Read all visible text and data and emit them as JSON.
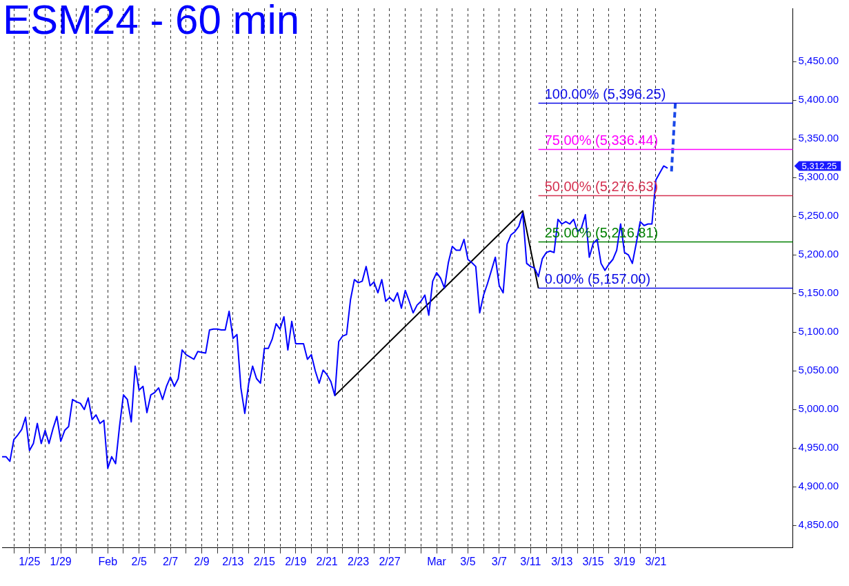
{
  "chart_data": {
    "type": "line",
    "title": "ESM24 - 60 min",
    "legend": false,
    "grid": "x",
    "categories": [
      null,
      null,
      null,
      null,
      null,
      null,
      null,
      "1/25",
      null,
      null,
      null,
      null,
      null,
      null,
      null,
      "1/29",
      null,
      null,
      null,
      null,
      null,
      null,
      null,
      null,
      null,
      null,
      null,
      "Feb",
      null,
      null,
      null,
      null,
      null,
      null,
      null,
      "2/5",
      null,
      null,
      null,
      null,
      null,
      null,
      null,
      "2/7",
      null,
      null,
      null,
      null,
      null,
      null,
      null,
      "2/9",
      null,
      null,
      null,
      null,
      null,
      null,
      null,
      "2/13",
      null,
      null,
      null,
      null,
      null,
      null,
      null,
      "2/15",
      null,
      null,
      null,
      null,
      null,
      null,
      null,
      "2/19",
      null,
      null,
      null,
      null,
      null,
      null,
      null,
      "2/21",
      null,
      null,
      null,
      null,
      null,
      null,
      null,
      "2/23",
      null,
      null,
      null,
      null,
      null,
      null,
      null,
      "2/27",
      null,
      null,
      null,
      null,
      null,
      null,
      null,
      null,
      null,
      null,
      null,
      "Mar",
      null,
      null,
      null,
      null,
      null,
      null,
      null,
      "3/5",
      null,
      null,
      null,
      null,
      null,
      null,
      null,
      "3/7",
      null,
      null,
      null,
      null,
      null,
      null,
      null,
      "3/11",
      null,
      null,
      null,
      null,
      null,
      null,
      null,
      "3/13",
      null,
      null,
      null,
      null,
      null,
      null,
      null,
      "3/15",
      null,
      null,
      null,
      null,
      null,
      null,
      null,
      "3/19",
      null,
      null,
      null,
      null,
      null,
      null,
      null,
      "3/21",
      null,
      null,
      null,
      null,
      null,
      null,
      null,
      null,
      null,
      null,
      null,
      null,
      null,
      null,
      null,
      null,
      null,
      null,
      null,
      null,
      null,
      null,
      null,
      null,
      null,
      null,
      null,
      null,
      null,
      null,
      null,
      null,
      null,
      null,
      null
    ],
    "ylim": [
      4821,
      5519
    ],
    "yticks": [
      {
        "value": 4850,
        "label": "4,850.00"
      },
      {
        "value": 4900,
        "label": "4,900.00"
      },
      {
        "value": 4950,
        "label": "4,950.00"
      },
      {
        "value": 5000,
        "label": "5,000.00"
      },
      {
        "value": 5050,
        "label": "5,050.00"
      },
      {
        "value": 5100,
        "label": "5,100.00"
      },
      {
        "value": 5150,
        "label": "5,150.00"
      },
      {
        "value": 5200,
        "label": "5,200.00"
      },
      {
        "value": 5250,
        "label": "5,250.00"
      },
      {
        "value": 5300,
        "label": "5,300.00"
      },
      {
        "value": 5350,
        "label": "5,350.00"
      },
      {
        "value": 5400,
        "label": "5,400.00"
      },
      {
        "value": 5450,
        "label": "5,450.00"
      }
    ],
    "series": [
      {
        "color": "#0000ff",
        "values": [
          4939,
          4939,
          4933,
          4961,
          4967,
          4974,
          4990,
          4947,
          4956,
          4982,
          4956,
          4973,
          4956,
          4975,
          4991,
          4959,
          4973,
          4978,
          5013,
          5010,
          5008,
          5000,
          5015,
          4987,
          4993,
          4982,
          4986,
          4924,
          4939,
          4930,
          4978,
          5019,
          5013,
          4984,
          5056,
          5025,
          5030,
          4996,
          5019,
          5022,
          5028,
          5013,
          5030,
          5042,
          5030,
          5040,
          5077,
          5071,
          5068,
          5065,
          5075,
          5074,
          5073,
          5103,
          5104,
          5104,
          5103,
          5103,
          5127,
          5092,
          5097,
          5028,
          4995,
          5034,
          5056,
          5040,
          5034,
          5079,
          5079,
          5091,
          5111,
          5104,
          5120,
          5077,
          5114,
          5085,
          5085,
          5085,
          5065,
          5071,
          5050,
          5034,
          5051,
          5045,
          5036,
          5018,
          5088,
          5095,
          5097,
          5142,
          5168,
          5164,
          5166,
          5185,
          5160,
          5165,
          5151,
          5168,
          5140,
          5145,
          5140,
          5151,
          5131,
          5154,
          5140,
          5125,
          5135,
          5140,
          5148,
          5122,
          5166,
          5177,
          5170,
          5157,
          5190,
          5211,
          5206,
          5206,
          5220,
          5194,
          5190,
          5185,
          5125,
          5148,
          5163,
          5180,
          5197,
          5160,
          5151,
          5214,
          5226,
          5230,
          5237,
          5254,
          5189,
          5185,
          5183,
          5172,
          5195,
          5203,
          5205,
          5203,
          5246,
          5240,
          5243,
          5240,
          5246,
          5230,
          5235,
          5252,
          5197,
          5215,
          5220,
          5189,
          5180,
          5188,
          5194,
          5206,
          5240,
          5203,
          5200,
          5189,
          5215,
          5243,
          5238,
          5240,
          5240,
          5297,
          5306,
          5315,
          5312.25,
          null,
          null,
          null,
          null,
          null,
          null,
          null,
          null,
          null,
          null,
          null,
          null,
          null,
          null,
          null,
          null,
          null,
          null,
          null,
          null,
          null,
          null,
          null,
          null,
          null,
          null,
          null,
          null,
          null,
          null,
          null,
          null
        ]
      },
      {
        "color": "#000000",
        "values": [
          null,
          null,
          null,
          null,
          null,
          null,
          null,
          null,
          null,
          null,
          null,
          null,
          null,
          null,
          null,
          null,
          null,
          null,
          null,
          null,
          null,
          null,
          null,
          null,
          null,
          null,
          null,
          null,
          null,
          null,
          null,
          null,
          null,
          null,
          null,
          null,
          null,
          null,
          null,
          null,
          null,
          null,
          null,
          null,
          null,
          null,
          null,
          null,
          null,
          null,
          null,
          null,
          null,
          null,
          null,
          null,
          null,
          null,
          null,
          null,
          null,
          null,
          null,
          null,
          null,
          null,
          null,
          null,
          null,
          null,
          null,
          null,
          null,
          null,
          null,
          null,
          null,
          null,
          null,
          null,
          null,
          null,
          null,
          null,
          null,
          5018,
          null,
          null,
          null,
          null,
          null,
          null,
          null,
          null,
          null,
          null,
          null,
          null,
          null,
          null,
          null,
          null,
          null,
          null,
          null,
          null,
          null,
          null,
          null,
          null,
          null,
          null,
          null,
          null,
          null,
          null,
          null,
          null,
          null,
          null,
          null,
          null,
          null,
          null,
          null,
          null,
          null,
          null,
          null,
          null,
          null,
          null,
          null,
          5257,
          null,
          null,
          null,
          5157,
          null,
          null,
          null,
          null,
          null,
          null,
          null,
          null,
          null,
          null,
          null,
          null,
          null,
          null,
          null,
          null,
          null,
          null,
          null,
          null,
          null,
          null,
          null,
          null,
          null,
          null,
          null,
          null,
          null,
          null,
          null,
          null,
          null,
          null,
          null,
          null,
          null,
          null,
          null,
          null,
          null,
          null,
          null,
          null,
          null,
          null,
          null,
          null,
          null,
          null,
          null,
          null,
          null,
          null,
          null,
          null,
          null,
          null,
          null,
          null,
          null,
          null,
          null,
          null,
          null
        ]
      },
      {
        "name": "100.00% (5,396.25)",
        "color": "#0a0ae6",
        "values": [
          null,
          null,
          null,
          null,
          null,
          null,
          null,
          null,
          null,
          null,
          null,
          null,
          null,
          null,
          null,
          null,
          null,
          null,
          null,
          null,
          null,
          null,
          null,
          null,
          null,
          null,
          null,
          null,
          null,
          null,
          null,
          null,
          null,
          null,
          null,
          null,
          null,
          null,
          null,
          null,
          null,
          null,
          null,
          null,
          null,
          null,
          null,
          null,
          null,
          null,
          null,
          null,
          null,
          null,
          null,
          null,
          null,
          null,
          null,
          null,
          null,
          null,
          null,
          null,
          null,
          null,
          null,
          null,
          null,
          null,
          null,
          null,
          null,
          null,
          null,
          null,
          null,
          null,
          null,
          null,
          null,
          null,
          null,
          null,
          null,
          null,
          null,
          null,
          null,
          null,
          null,
          null,
          null,
          null,
          null,
          null,
          null,
          null,
          null,
          null,
          null,
          null,
          null,
          null,
          null,
          null,
          null,
          null,
          null,
          null,
          null,
          null,
          null,
          null,
          null,
          null,
          null,
          null,
          null,
          null,
          null,
          null,
          null,
          null,
          null,
          null,
          null,
          null,
          null,
          null,
          null,
          null,
          null,
          null,
          null,
          null,
          null,
          5396.25,
          5396.25,
          5396.25,
          5396.25,
          5396.25,
          5396.25,
          5396.25,
          5396.25,
          5396.25,
          5396.25,
          5396.25,
          5396.25,
          5396.25,
          5396.25,
          5396.25,
          5396.25,
          5396.25,
          5396.25,
          5396.25,
          5396.25,
          5396.25,
          5396.25,
          5396.25,
          5396.25,
          5396.25,
          5396.25,
          5396.25,
          5396.25,
          5396.25,
          5396.25,
          5396.25,
          5396.25,
          5396.25,
          5396.25,
          5396.25,
          5396.25,
          5396.25,
          5396.25,
          5396.25,
          5396.25,
          5396.25,
          5396.25,
          5396.25,
          5396.25,
          5396.25,
          5396.25,
          5396.25,
          5396.25,
          5396.25,
          5396.25,
          5396.25,
          5396.25,
          5396.25,
          5396.25,
          5396.25,
          5396.25,
          5396.25,
          5396.25,
          5396.25,
          5396.25,
          5396.25,
          5396.25,
          5396.25,
          5396.25,
          5396.25,
          5396.25
        ]
      },
      {
        "name": "75.00% (5,336.44)",
        "color": "#ff00ff",
        "values": [
          null,
          null,
          null,
          null,
          null,
          null,
          null,
          null,
          null,
          null,
          null,
          null,
          null,
          null,
          null,
          null,
          null,
          null,
          null,
          null,
          null,
          null,
          null,
          null,
          null,
          null,
          null,
          null,
          null,
          null,
          null,
          null,
          null,
          null,
          null,
          null,
          null,
          null,
          null,
          null,
          null,
          null,
          null,
          null,
          null,
          null,
          null,
          null,
          null,
          null,
          null,
          null,
          null,
          null,
          null,
          null,
          null,
          null,
          null,
          null,
          null,
          null,
          null,
          null,
          null,
          null,
          null,
          null,
          null,
          null,
          null,
          null,
          null,
          null,
          null,
          null,
          null,
          null,
          null,
          null,
          null,
          null,
          null,
          null,
          null,
          null,
          null,
          null,
          null,
          null,
          null,
          null,
          null,
          null,
          null,
          null,
          null,
          null,
          null,
          null,
          null,
          null,
          null,
          null,
          null,
          null,
          null,
          null,
          null,
          null,
          null,
          null,
          null,
          null,
          null,
          null,
          null,
          null,
          null,
          null,
          null,
          null,
          null,
          null,
          null,
          null,
          null,
          null,
          null,
          null,
          null,
          null,
          null,
          null,
          null,
          null,
          null,
          5336.44,
          5336.44,
          5336.44,
          5336.44,
          5336.44,
          5336.44,
          5336.44,
          5336.44,
          5336.44,
          5336.44,
          5336.44,
          5336.44,
          5336.44,
          5336.44,
          5336.44,
          5336.44,
          5336.44,
          5336.44,
          5336.44,
          5336.44,
          5336.44,
          5336.44,
          5336.44,
          5336.44,
          5336.44,
          5336.44,
          5336.44,
          5336.44,
          5336.44,
          5336.44,
          5336.44,
          5336.44,
          5336.44,
          5336.44,
          5336.44,
          5336.44,
          5336.44,
          5336.44,
          5336.44,
          5336.44,
          5336.44,
          5336.44,
          5336.44,
          5336.44,
          5336.44,
          5336.44,
          5336.44,
          5336.44,
          5336.44,
          5336.44,
          5336.44,
          5336.44,
          5336.44,
          5336.44,
          5336.44,
          5336.44,
          5336.44,
          5336.44,
          5336.44,
          5336.44,
          5336.44,
          5336.44,
          5336.44,
          5336.44,
          5336.44,
          5336.44
        ]
      },
      {
        "name": "50.00% (5,276.63)",
        "color": "#d43050",
        "values": [
          null,
          null,
          null,
          null,
          null,
          null,
          null,
          null,
          null,
          null,
          null,
          null,
          null,
          null,
          null,
          null,
          null,
          null,
          null,
          null,
          null,
          null,
          null,
          null,
          null,
          null,
          null,
          null,
          null,
          null,
          null,
          null,
          null,
          null,
          null,
          null,
          null,
          null,
          null,
          null,
          null,
          null,
          null,
          null,
          null,
          null,
          null,
          null,
          null,
          null,
          null,
          null,
          null,
          null,
          null,
          null,
          null,
          null,
          null,
          null,
          null,
          null,
          null,
          null,
          null,
          null,
          null,
          null,
          null,
          null,
          null,
          null,
          null,
          null,
          null,
          null,
          null,
          null,
          null,
          null,
          null,
          null,
          null,
          null,
          null,
          null,
          null,
          null,
          null,
          null,
          null,
          null,
          null,
          null,
          null,
          null,
          null,
          null,
          null,
          null,
          null,
          null,
          null,
          null,
          null,
          null,
          null,
          null,
          null,
          null,
          null,
          null,
          null,
          null,
          null,
          null,
          null,
          null,
          null,
          null,
          null,
          null,
          null,
          null,
          null,
          null,
          null,
          null,
          null,
          null,
          null,
          null,
          null,
          null,
          null,
          null,
          null,
          5276.63,
          5276.63,
          5276.63,
          5276.63,
          5276.63,
          5276.63,
          5276.63,
          5276.63,
          5276.63,
          5276.63,
          5276.63,
          5276.63,
          5276.63,
          5276.63,
          5276.63,
          5276.63,
          5276.63,
          5276.63,
          5276.63,
          5276.63,
          5276.63,
          5276.63,
          5276.63,
          5276.63,
          5276.63,
          5276.63,
          5276.63,
          5276.63,
          5276.63,
          5276.63,
          5276.63,
          5276.63,
          5276.63,
          5276.63,
          5276.63,
          5276.63,
          5276.63,
          5276.63,
          5276.63,
          5276.63,
          5276.63,
          5276.63,
          5276.63,
          5276.63,
          5276.63,
          5276.63,
          5276.63,
          5276.63,
          5276.63,
          5276.63,
          5276.63,
          5276.63,
          5276.63,
          5276.63,
          5276.63,
          5276.63,
          5276.63,
          5276.63,
          5276.63,
          5276.63,
          5276.63,
          5276.63,
          5276.63,
          5276.63,
          5276.63,
          5276.63
        ]
      },
      {
        "name": "25.00% (5,216.81)",
        "color": "#008000",
        "values": [
          null,
          null,
          null,
          null,
          null,
          null,
          null,
          null,
          null,
          null,
          null,
          null,
          null,
          null,
          null,
          null,
          null,
          null,
          null,
          null,
          null,
          null,
          null,
          null,
          null,
          null,
          null,
          null,
          null,
          null,
          null,
          null,
          null,
          null,
          null,
          null,
          null,
          null,
          null,
          null,
          null,
          null,
          null,
          null,
          null,
          null,
          null,
          null,
          null,
          null,
          null,
          null,
          null,
          null,
          null,
          null,
          null,
          null,
          null,
          null,
          null,
          null,
          null,
          null,
          null,
          null,
          null,
          null,
          null,
          null,
          null,
          null,
          null,
          null,
          null,
          null,
          null,
          null,
          null,
          null,
          null,
          null,
          null,
          null,
          null,
          null,
          null,
          null,
          null,
          null,
          null,
          null,
          null,
          null,
          null,
          null,
          null,
          null,
          null,
          null,
          null,
          null,
          null,
          null,
          null,
          null,
          null,
          null,
          null,
          null,
          null,
          null,
          null,
          null,
          null,
          null,
          null,
          null,
          null,
          null,
          null,
          null,
          null,
          null,
          null,
          null,
          null,
          null,
          null,
          null,
          null,
          null,
          null,
          null,
          null,
          null,
          null,
          5216.81,
          5216.81,
          5216.81,
          5216.81,
          5216.81,
          5216.81,
          5216.81,
          5216.81,
          5216.81,
          5216.81,
          5216.81,
          5216.81,
          5216.81,
          5216.81,
          5216.81,
          5216.81,
          5216.81,
          5216.81,
          5216.81,
          5216.81,
          5216.81,
          5216.81,
          5216.81,
          5216.81,
          5216.81,
          5216.81,
          5216.81,
          5216.81,
          5216.81,
          5216.81,
          5216.81,
          5216.81,
          5216.81,
          5216.81,
          5216.81,
          5216.81,
          5216.81,
          5216.81,
          5216.81,
          5216.81,
          5216.81,
          5216.81,
          5216.81,
          5216.81,
          5216.81,
          5216.81,
          5216.81,
          5216.81,
          5216.81,
          5216.81,
          5216.81,
          5216.81,
          5216.81,
          5216.81,
          5216.81,
          5216.81,
          5216.81,
          5216.81,
          5216.81,
          5216.81,
          5216.81,
          5216.81,
          5216.81,
          5216.81,
          5216.81,
          5216.81
        ]
      },
      {
        "name": "0.00% (5,157.00)",
        "color": "#0a0ae6",
        "values": [
          null,
          null,
          null,
          null,
          null,
          null,
          null,
          null,
          null,
          null,
          null,
          null,
          null,
          null,
          null,
          null,
          null,
          null,
          null,
          null,
          null,
          null,
          null,
          null,
          null,
          null,
          null,
          null,
          null,
          null,
          null,
          null,
          null,
          null,
          null,
          null,
          null,
          null,
          null,
          null,
          null,
          null,
          null,
          null,
          null,
          null,
          null,
          null,
          null,
          null,
          null,
          null,
          null,
          null,
          null,
          null,
          null,
          null,
          null,
          null,
          null,
          null,
          null,
          null,
          null,
          null,
          null,
          null,
          null,
          null,
          null,
          null,
          null,
          null,
          null,
          null,
          null,
          null,
          null,
          null,
          null,
          null,
          null,
          null,
          null,
          null,
          null,
          null,
          null,
          null,
          null,
          null,
          null,
          null,
          null,
          null,
          null,
          null,
          null,
          null,
          null,
          null,
          null,
          null,
          null,
          null,
          null,
          null,
          null,
          null,
          null,
          null,
          null,
          null,
          null,
          null,
          null,
          null,
          null,
          null,
          null,
          null,
          null,
          null,
          null,
          null,
          null,
          null,
          null,
          null,
          null,
          null,
          null,
          null,
          null,
          null,
          null,
          5157,
          5157,
          5157,
          5157,
          5157,
          5157,
          5157,
          5157,
          5157,
          5157,
          5157,
          5157,
          5157,
          5157,
          5157,
          5157,
          5157,
          5157,
          5157,
          5157,
          5157,
          5157,
          5157,
          5157,
          5157,
          5157,
          5157,
          5157,
          5157,
          5157,
          5157,
          5157,
          5157,
          5157,
          5157,
          5157,
          5157,
          5157,
          5157,
          5157,
          5157,
          5157,
          5157,
          5157,
          5157,
          5157,
          5157,
          5157,
          5157,
          5157,
          5157,
          5157,
          5157,
          5157,
          5157,
          5157,
          5157,
          5157,
          5157,
          5157,
          5157,
          5157,
          5157,
          5157,
          5157,
          5157
        ]
      },
      {
        "color": "#1a48e8",
        "line_style": "dashed",
        "values": [
          null,
          null,
          null,
          null,
          null,
          null,
          null,
          null,
          null,
          null,
          null,
          null,
          null,
          null,
          null,
          null,
          null,
          null,
          null,
          null,
          null,
          null,
          null,
          null,
          null,
          null,
          null,
          null,
          null,
          null,
          null,
          null,
          null,
          null,
          null,
          null,
          null,
          null,
          null,
          null,
          null,
          null,
          null,
          null,
          null,
          null,
          null,
          null,
          null,
          null,
          null,
          null,
          null,
          null,
          null,
          null,
          null,
          null,
          null,
          null,
          null,
          null,
          null,
          null,
          null,
          null,
          null,
          null,
          null,
          null,
          null,
          null,
          null,
          null,
          null,
          null,
          null,
          null,
          null,
          null,
          null,
          null,
          null,
          null,
          null,
          null,
          null,
          null,
          null,
          null,
          null,
          null,
          null,
          null,
          null,
          null,
          null,
          null,
          null,
          null,
          null,
          null,
          null,
          null,
          null,
          null,
          null,
          null,
          null,
          null,
          null,
          null,
          null,
          null,
          null,
          null,
          null,
          null,
          null,
          null,
          null,
          null,
          null,
          null,
          null,
          null,
          null,
          null,
          null,
          null,
          null,
          null,
          null,
          null,
          null,
          null,
          null,
          null,
          null,
          null,
          null,
          null,
          null,
          null,
          null,
          null,
          null,
          null,
          null,
          null,
          null,
          null,
          null,
          null,
          null,
          null,
          null,
          null,
          null,
          null,
          null,
          null,
          null,
          null,
          null,
          null,
          null,
          null,
          null,
          null,
          null,
          5308,
          5398,
          null,
          null,
          null,
          null,
          null,
          null,
          null,
          null,
          null,
          null,
          null,
          null,
          null,
          null,
          null,
          null,
          null,
          null,
          null,
          null,
          null,
          null,
          null,
          null,
          null,
          null,
          null,
          null,
          null,
          null
        ]
      }
    ],
    "annotations": [
      "5,312.25"
    ]
  }
}
